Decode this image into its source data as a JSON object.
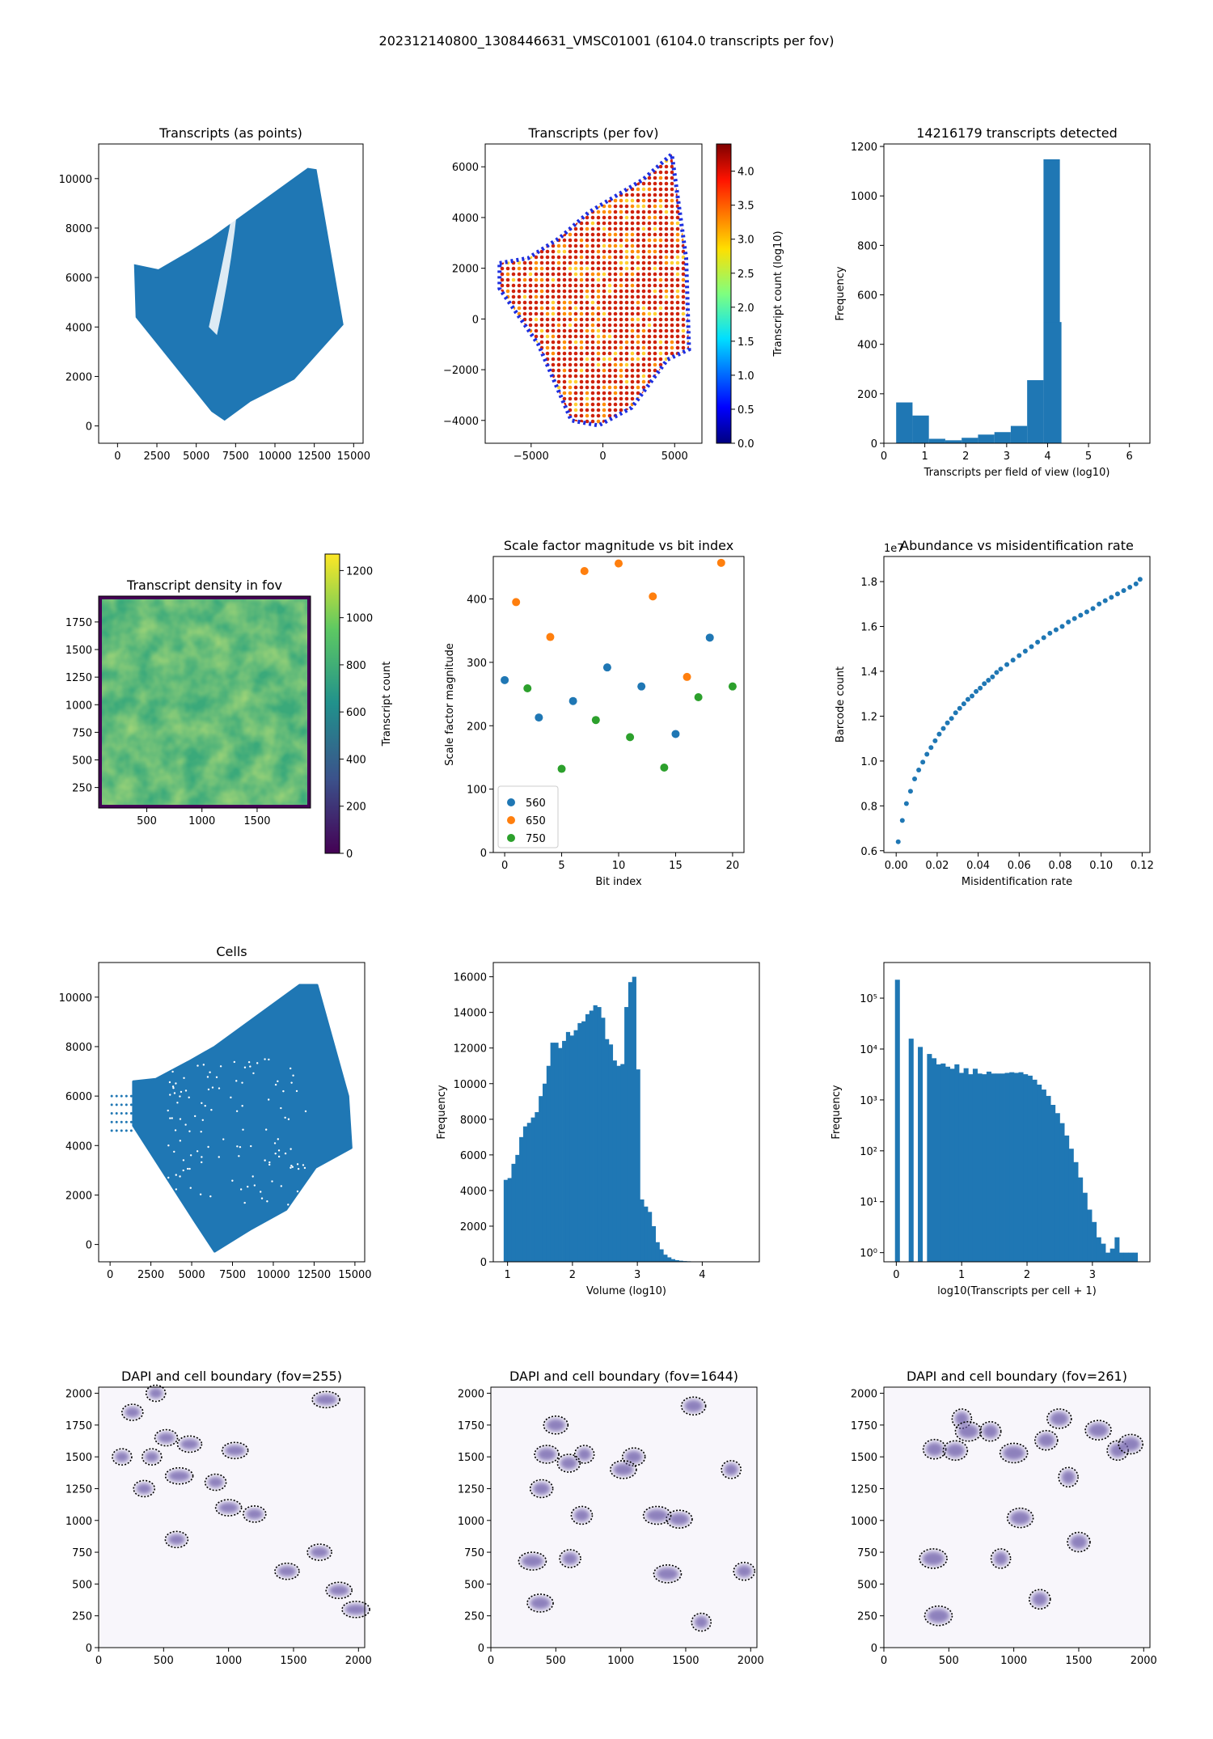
{
  "suptitle": "202312140800_1308446631_VMSC01001 (6104.0 transcripts per fov)",
  "colors": {
    "blue": "#1f77b4",
    "orange": "#ff7f0e",
    "green": "#2ca02c",
    "frame": "#000000"
  },
  "panels": [
    {
      "id": "p1",
      "title": "Transcripts (as points)",
      "xlabel": "",
      "ylabel": "",
      "xticks": [
        "0",
        "2500",
        "5000",
        "7500",
        "10000",
        "12500",
        "15000"
      ],
      "yticks": [
        "0",
        "2000",
        "4000",
        "6000",
        "8000",
        "10000"
      ],
      "xlim": [
        -1200,
        15600
      ],
      "ylim": [
        -700,
        11400
      ]
    },
    {
      "id": "p2",
      "title": "Transcripts (per fov)",
      "xlabel": "",
      "ylabel": "",
      "xticks": [
        "−5000",
        "0",
        "5000"
      ],
      "yticks": [
        "−4000",
        "−2000",
        "0",
        "2000",
        "4000",
        "6000"
      ],
      "xlim": [
        -8200,
        6900
      ],
      "ylim": [
        -4900,
        6900
      ],
      "colorbar": {
        "label": "Transcript count (log10)",
        "ticks": [
          "0.0",
          "0.5",
          "1.0",
          "1.5",
          "2.0",
          "2.5",
          "3.0",
          "3.5",
          "4.0"
        ],
        "range": [
          0,
          4.4
        ],
        "colormap": "jet"
      }
    },
    {
      "id": "p3",
      "title": "14216179 transcripts detected",
      "xlabel": "Transcripts per field of view (log10)",
      "ylabel": "Frequency",
      "xticks": [
        "0",
        "1",
        "2",
        "3",
        "4",
        "5",
        "6"
      ],
      "yticks": [
        "0",
        "200",
        "400",
        "600",
        "800",
        "1000",
        "1200"
      ],
      "xlim": [
        0,
        6.5
      ],
      "ylim": [
        0,
        1210
      ]
    },
    {
      "id": "p4",
      "title": "Transcript density in fov",
      "xlabel": "",
      "ylabel": "",
      "xticks": [
        "500",
        "1000",
        "1500"
      ],
      "yticks": [
        "250",
        "500",
        "750",
        "1000",
        "1250",
        "1500",
        "1750"
      ],
      "xlim": [
        64,
        1984
      ],
      "ylim": [
        64,
        1984
      ],
      "colorbar": {
        "label": "Transcript count",
        "ticks": [
          "0",
          "200",
          "400",
          "600",
          "800",
          "1000",
          "1200"
        ],
        "range": [
          0,
          1270
        ],
        "colormap": "viridis"
      }
    },
    {
      "id": "p5",
      "title": "Scale factor magnitude vs bit index",
      "xlabel": "Bit index",
      "ylabel": "Scale factor magnitude",
      "xticks": [
        "0",
        "5",
        "10",
        "15",
        "20"
      ],
      "yticks": [
        "0",
        "100",
        "200",
        "300",
        "400"
      ],
      "xlim": [
        -1,
        21
      ],
      "ylim": [
        0,
        467
      ],
      "legend": [
        "560",
        "650",
        "750"
      ]
    },
    {
      "id": "p6",
      "title": "Abundance vs misidentification rate",
      "xlabel": "Misidentification rate",
      "ylabel": "Barcode count",
      "offset_label": "1e7",
      "xticks": [
        "0.00",
        "0.02",
        "0.04",
        "0.06",
        "0.08",
        "0.10",
        "0.12"
      ],
      "yticks": [
        "0.6",
        "0.8",
        "1.0",
        "1.2",
        "1.4",
        "1.6",
        "1.8"
      ],
      "xlim": [
        -0.006,
        0.1238
      ],
      "ylim": [
        0.592,
        1.912
      ]
    },
    {
      "id": "p7",
      "title": "Cells",
      "xlabel": "",
      "ylabel": "",
      "xticks": [
        "0",
        "2500",
        "5000",
        "7500",
        "10000",
        "12500",
        "15000"
      ],
      "yticks": [
        "0",
        "2000",
        "4000",
        "6000",
        "8000",
        "10000"
      ],
      "xlim": [
        -700,
        15600
      ],
      "ylim": [
        -700,
        11400
      ]
    },
    {
      "id": "p8",
      "title": "",
      "xlabel": "Volume (log10)",
      "ylabel": "Frequency",
      "xticks": [
        "1",
        "2",
        "3",
        "4"
      ],
      "yticks": [
        "0",
        "2000",
        "4000",
        "6000",
        "8000",
        "10000",
        "12000",
        "14000",
        "16000"
      ],
      "xlim": [
        0.78,
        4.88
      ],
      "ylim": [
        0,
        16800
      ]
    },
    {
      "id": "p9",
      "title": "",
      "xlabel": "log10(Transcripts per cell + 1)",
      "ylabel": "Frequency",
      "xticks": [
        "0",
        "1",
        "2",
        "3"
      ],
      "yticks": [
        "10⁰",
        "10¹",
        "10²",
        "10³",
        "10⁴",
        "10⁵"
      ],
      "xlim": [
        -0.19,
        3.88
      ],
      "ylim_log10": [
        -0.18,
        5.7
      ]
    },
    {
      "id": "p10",
      "title": "DAPI and cell boundary (fov=255)",
      "xlabel": "",
      "ylabel": "",
      "xticks": [
        "0",
        "500",
        "1000",
        "1500",
        "2000"
      ],
      "yticks": [
        "0",
        "250",
        "500",
        "750",
        "1000",
        "1250",
        "1500",
        "1750",
        "2000"
      ],
      "xlim": [
        0,
        2048
      ],
      "ylim": [
        0,
        2048
      ]
    },
    {
      "id": "p11",
      "title": "DAPI and cell boundary (fov=1644)",
      "xlabel": "",
      "ylabel": "",
      "xticks": [
        "0",
        "500",
        "1000",
        "1500",
        "2000"
      ],
      "yticks": [
        "0",
        "250",
        "500",
        "750",
        "1000",
        "1250",
        "1500",
        "1750",
        "2000"
      ],
      "xlim": [
        0,
        2048
      ],
      "ylim": [
        0,
        2048
      ]
    },
    {
      "id": "p12",
      "title": "DAPI and cell boundary (fov=261)",
      "xlabel": "",
      "ylabel": "",
      "xticks": [
        "0",
        "500",
        "1000",
        "1500",
        "2000"
      ],
      "yticks": [
        "0",
        "250",
        "500",
        "750",
        "1000",
        "1250",
        "1500",
        "1750",
        "2000"
      ],
      "xlim": [
        0,
        2048
      ],
      "ylim": [
        0,
        2048
      ]
    }
  ],
  "chart_data": [
    {
      "panel": "p1",
      "type": "scatter",
      "title": "Transcripts (as points)",
      "outline_xy": [
        [
          1100,
          6500
        ],
        [
          2600,
          6300
        ],
        [
          4500,
          7000
        ],
        [
          6000,
          7600
        ],
        [
          12100,
          10400
        ],
        [
          12600,
          10350
        ],
        [
          14300,
          4100
        ],
        [
          11200,
          1900
        ],
        [
          8400,
          1000
        ],
        [
          6800,
          250
        ],
        [
          6000,
          600
        ],
        [
          1200,
          4400
        ]
      ],
      "xlim": [
        -1200,
        15600
      ],
      "ylim": [
        -700,
        11400
      ]
    },
    {
      "panel": "p2",
      "type": "scatter",
      "title": "Transcripts (per fov)",
      "colorbar_label": "Transcript count (log10)",
      "outline_xy": [
        [
          -7200,
          2200
        ],
        [
          -5200,
          2400
        ],
        [
          -3000,
          3200
        ],
        [
          -1000,
          4200
        ],
        [
          2800,
          5500
        ],
        [
          4800,
          6500
        ],
        [
          5800,
          2400
        ],
        [
          6000,
          -1200
        ],
        [
          4500,
          -1600
        ],
        [
          2000,
          -3500
        ],
        [
          -300,
          -4200
        ],
        [
          -2200,
          -4000
        ],
        [
          -4500,
          -1000
        ],
        [
          -7200,
          1200
        ]
      ],
      "typical_value_log10": 3.9,
      "xlim": [
        -8200,
        6900
      ],
      "ylim": [
        -4900,
        6900
      ]
    },
    {
      "panel": "p3",
      "type": "bar",
      "title": "14216179 transcripts detected",
      "xlabel": "Transcripts per field of view (log10)",
      "ylabel": "Frequency",
      "bin_edges": [
        0.3,
        0.7,
        1.1,
        1.5,
        1.9,
        2.3,
        2.7,
        3.1,
        3.5,
        3.9,
        4.3
      ],
      "values": [
        165,
        112,
        18,
        12,
        22,
        35,
        45,
        70,
        255,
        1148
      ],
      "extra_bar": {
        "edges": [
          3.9,
          4.33
        ],
        "value": 490
      },
      "ylim": [
        0,
        1210
      ]
    },
    {
      "panel": "p4",
      "type": "heatmap",
      "title": "Transcript density in fov",
      "colorbar_label": "Transcript count",
      "value_range": [
        0,
        1270
      ],
      "typical_value": 800,
      "xlim": [
        64,
        1984
      ],
      "ylim": [
        64,
        1984
      ]
    },
    {
      "panel": "p5",
      "type": "scatter",
      "title": "Scale factor magnitude vs bit index",
      "xlabel": "Bit index",
      "ylabel": "Scale factor magnitude",
      "series": [
        {
          "name": "560",
          "x": [
            0,
            3,
            6,
            9,
            12,
            15,
            18
          ],
          "y": [
            272,
            213,
            239,
            292,
            262,
            187,
            339
          ]
        },
        {
          "name": "650",
          "x": [
            1,
            4,
            7,
            10,
            13,
            16,
            19
          ],
          "y": [
            395,
            340,
            444,
            456,
            404,
            277,
            457
          ]
        },
        {
          "name": "750",
          "x": [
            2,
            5,
            8,
            11,
            14,
            17,
            20
          ],
          "y": [
            259,
            132,
            209,
            182,
            134,
            245,
            262
          ]
        }
      ],
      "legend_position": "lower-left"
    },
    {
      "panel": "p6",
      "type": "scatter",
      "title": "Abundance vs misidentification rate",
      "xlabel": "Misidentification rate",
      "ylabel": "Barcode count",
      "y_multiplier": "1e7",
      "x": [
        0.001,
        0.003,
        0.005,
        0.007,
        0.009,
        0.011,
        0.013,
        0.015,
        0.017,
        0.019,
        0.021,
        0.023,
        0.025,
        0.027,
        0.029,
        0.031,
        0.033,
        0.035,
        0.037,
        0.039,
        0.041,
        0.043,
        0.045,
        0.047,
        0.049,
        0.051,
        0.054,
        0.057,
        0.06,
        0.063,
        0.066,
        0.069,
        0.072,
        0.075,
        0.078,
        0.081,
        0.084,
        0.087,
        0.09,
        0.093,
        0.096,
        0.099,
        0.102,
        0.105,
        0.108,
        0.111,
        0.114,
        0.117,
        0.119
      ],
      "y": [
        0.64,
        0.735,
        0.81,
        0.865,
        0.92,
        0.96,
        0.995,
        1.03,
        1.06,
        1.09,
        1.12,
        1.145,
        1.17,
        1.19,
        1.215,
        1.235,
        1.255,
        1.275,
        1.29,
        1.31,
        1.325,
        1.345,
        1.36,
        1.375,
        1.395,
        1.41,
        1.43,
        1.45,
        1.47,
        1.49,
        1.51,
        1.53,
        1.55,
        1.57,
        1.585,
        1.6,
        1.62,
        1.635,
        1.65,
        1.665,
        1.68,
        1.7,
        1.715,
        1.73,
        1.745,
        1.76,
        1.775,
        1.79,
        1.81
      ]
    },
    {
      "panel": "p7",
      "type": "scatter",
      "title": "Cells",
      "outline_xy": [
        [
          1400,
          6600
        ],
        [
          2800,
          6700
        ],
        [
          4800,
          7400
        ],
        [
          6400,
          8000
        ],
        [
          11600,
          10500
        ],
        [
          12700,
          10500
        ],
        [
          14600,
          6000
        ],
        [
          14800,
          3900
        ],
        [
          12600,
          3100
        ],
        [
          10800,
          1400
        ],
        [
          8600,
          600
        ],
        [
          6400,
          -300
        ],
        [
          5200,
          900
        ],
        [
          1400,
          4800
        ]
      ],
      "xlim": [
        -700,
        15600
      ],
      "ylim": [
        -700,
        11400
      ]
    },
    {
      "panel": "p8",
      "type": "bar",
      "xlabel": "Volume (log10)",
      "ylabel": "Frequency",
      "bin_edges": [
        0.94,
        1.0,
        1.06,
        1.12,
        1.18,
        1.24,
        1.3,
        1.36,
        1.42,
        1.48,
        1.54,
        1.6,
        1.66,
        1.72,
        1.78,
        1.84,
        1.9,
        1.96,
        2.02,
        2.08,
        2.14,
        2.2,
        2.26,
        2.32,
        2.38,
        2.44,
        2.5,
        2.56,
        2.62,
        2.68,
        2.74,
        2.8,
        2.86,
        2.92,
        2.98,
        3.04,
        3.1,
        3.16,
        3.22,
        3.28,
        3.34,
        3.4,
        3.46,
        3.52,
        3.58,
        3.64,
        3.7,
        3.76,
        3.82,
        3.88,
        3.94,
        4.0,
        4.06,
        4.12
      ],
      "values": [
        4600,
        4700,
        5500,
        6000,
        7000,
        7600,
        7800,
        8100,
        8400,
        9300,
        10000,
        11000,
        12300,
        12300,
        12000,
        12400,
        12900,
        12700,
        13000,
        13400,
        13500,
        13900,
        14100,
        14400,
        14300,
        13700,
        12500,
        12200,
        11300,
        11000,
        11100,
        14300,
        15700,
        16000,
        10800,
        3500,
        3100,
        2800,
        2000,
        1100,
        700,
        400,
        250,
        150,
        90,
        60,
        40,
        30,
        20,
        15,
        10,
        8,
        5
      ]
    },
    {
      "panel": "p9",
      "type": "bar",
      "y_scale": "log",
      "xlabel": "log10(Transcripts per cell + 1)",
      "ylabel": "Frequency",
      "bin_edges": [
        -0.02,
        0.05,
        0.12,
        0.19,
        0.26,
        0.33,
        0.4,
        0.47,
        0.54,
        0.61,
        0.68,
        0.75,
        0.82,
        0.89,
        0.96,
        1.03,
        1.1,
        1.17,
        1.24,
        1.31,
        1.38,
        1.45,
        1.52,
        1.59,
        1.66,
        1.73,
        1.8,
        1.87,
        1.94,
        2.01,
        2.08,
        2.15,
        2.22,
        2.29,
        2.36,
        2.43,
        2.5,
        2.57,
        2.64,
        2.71,
        2.78,
        2.85,
        2.92,
        2.99,
        3.06,
        3.13,
        3.2,
        3.27,
        3.34,
        3.41,
        3.48,
        3.55,
        3.62,
        3.69
      ],
      "values": [
        230000,
        0,
        0,
        16000,
        0,
        11000,
        0,
        8000,
        6600,
        5000,
        5200,
        4500,
        4100,
        5000,
        3400,
        4200,
        3200,
        4100,
        3300,
        3200,
        3600,
        3300,
        3300,
        3300,
        3400,
        3500,
        3400,
        3500,
        3200,
        3000,
        2500,
        2000,
        1600,
        1200,
        800,
        550,
        350,
        200,
        110,
        60,
        30,
        15,
        7,
        4,
        2,
        1.5,
        1,
        1.2,
        2,
        1,
        1,
        1,
        1
      ]
    },
    {
      "panel": "p10",
      "type": "scatter",
      "title": "DAPI and cell boundary (fov=255)",
      "description_values": {
        "nuclei_x": [
          440,
          260,
          520,
          700,
          1050,
          620,
          410,
          900,
          1200,
          1700,
          1850,
          1980,
          180,
          350,
          600,
          1450,
          1000,
          1750
        ],
        "nuclei_y": [
          2000,
          1850,
          1650,
          1600,
          1550,
          1350,
          1500,
          1300,
          1050,
          750,
          450,
          300,
          1500,
          1250,
          850,
          600,
          1100,
          1950
        ]
      }
    },
    {
      "panel": "p11",
      "type": "scatter",
      "title": "DAPI and cell boundary (fov=1644)",
      "description_values": {
        "nuclei_x": [
          430,
          380,
          320,
          720,
          610,
          1100,
          1560,
          1450,
          1280,
          1850,
          1950,
          390,
          500,
          1020,
          1360,
          1620,
          700,
          600
        ],
        "nuclei_y": [
          1520,
          350,
          680,
          1520,
          700,
          1500,
          1900,
          1010,
          1040,
          1400,
          600,
          1250,
          1750,
          1400,
          580,
          200,
          1040,
          1450
        ]
      }
    },
    {
      "panel": "p12",
      "type": "scatter",
      "title": "DAPI and cell boundary (fov=261)",
      "description_values": {
        "nuclei_x": [
          600,
          820,
          390,
          550,
          650,
          1000,
          1420,
          1800,
          1250,
          1350,
          1050,
          420,
          900,
          1200,
          1500,
          1900,
          1650,
          380
        ],
        "nuclei_y": [
          1800,
          1700,
          1560,
          1550,
          1700,
          1530,
          1340,
          1550,
          1630,
          1800,
          1020,
          250,
          700,
          380,
          830,
          1600,
          1710,
          700
        ]
      }
    }
  ]
}
